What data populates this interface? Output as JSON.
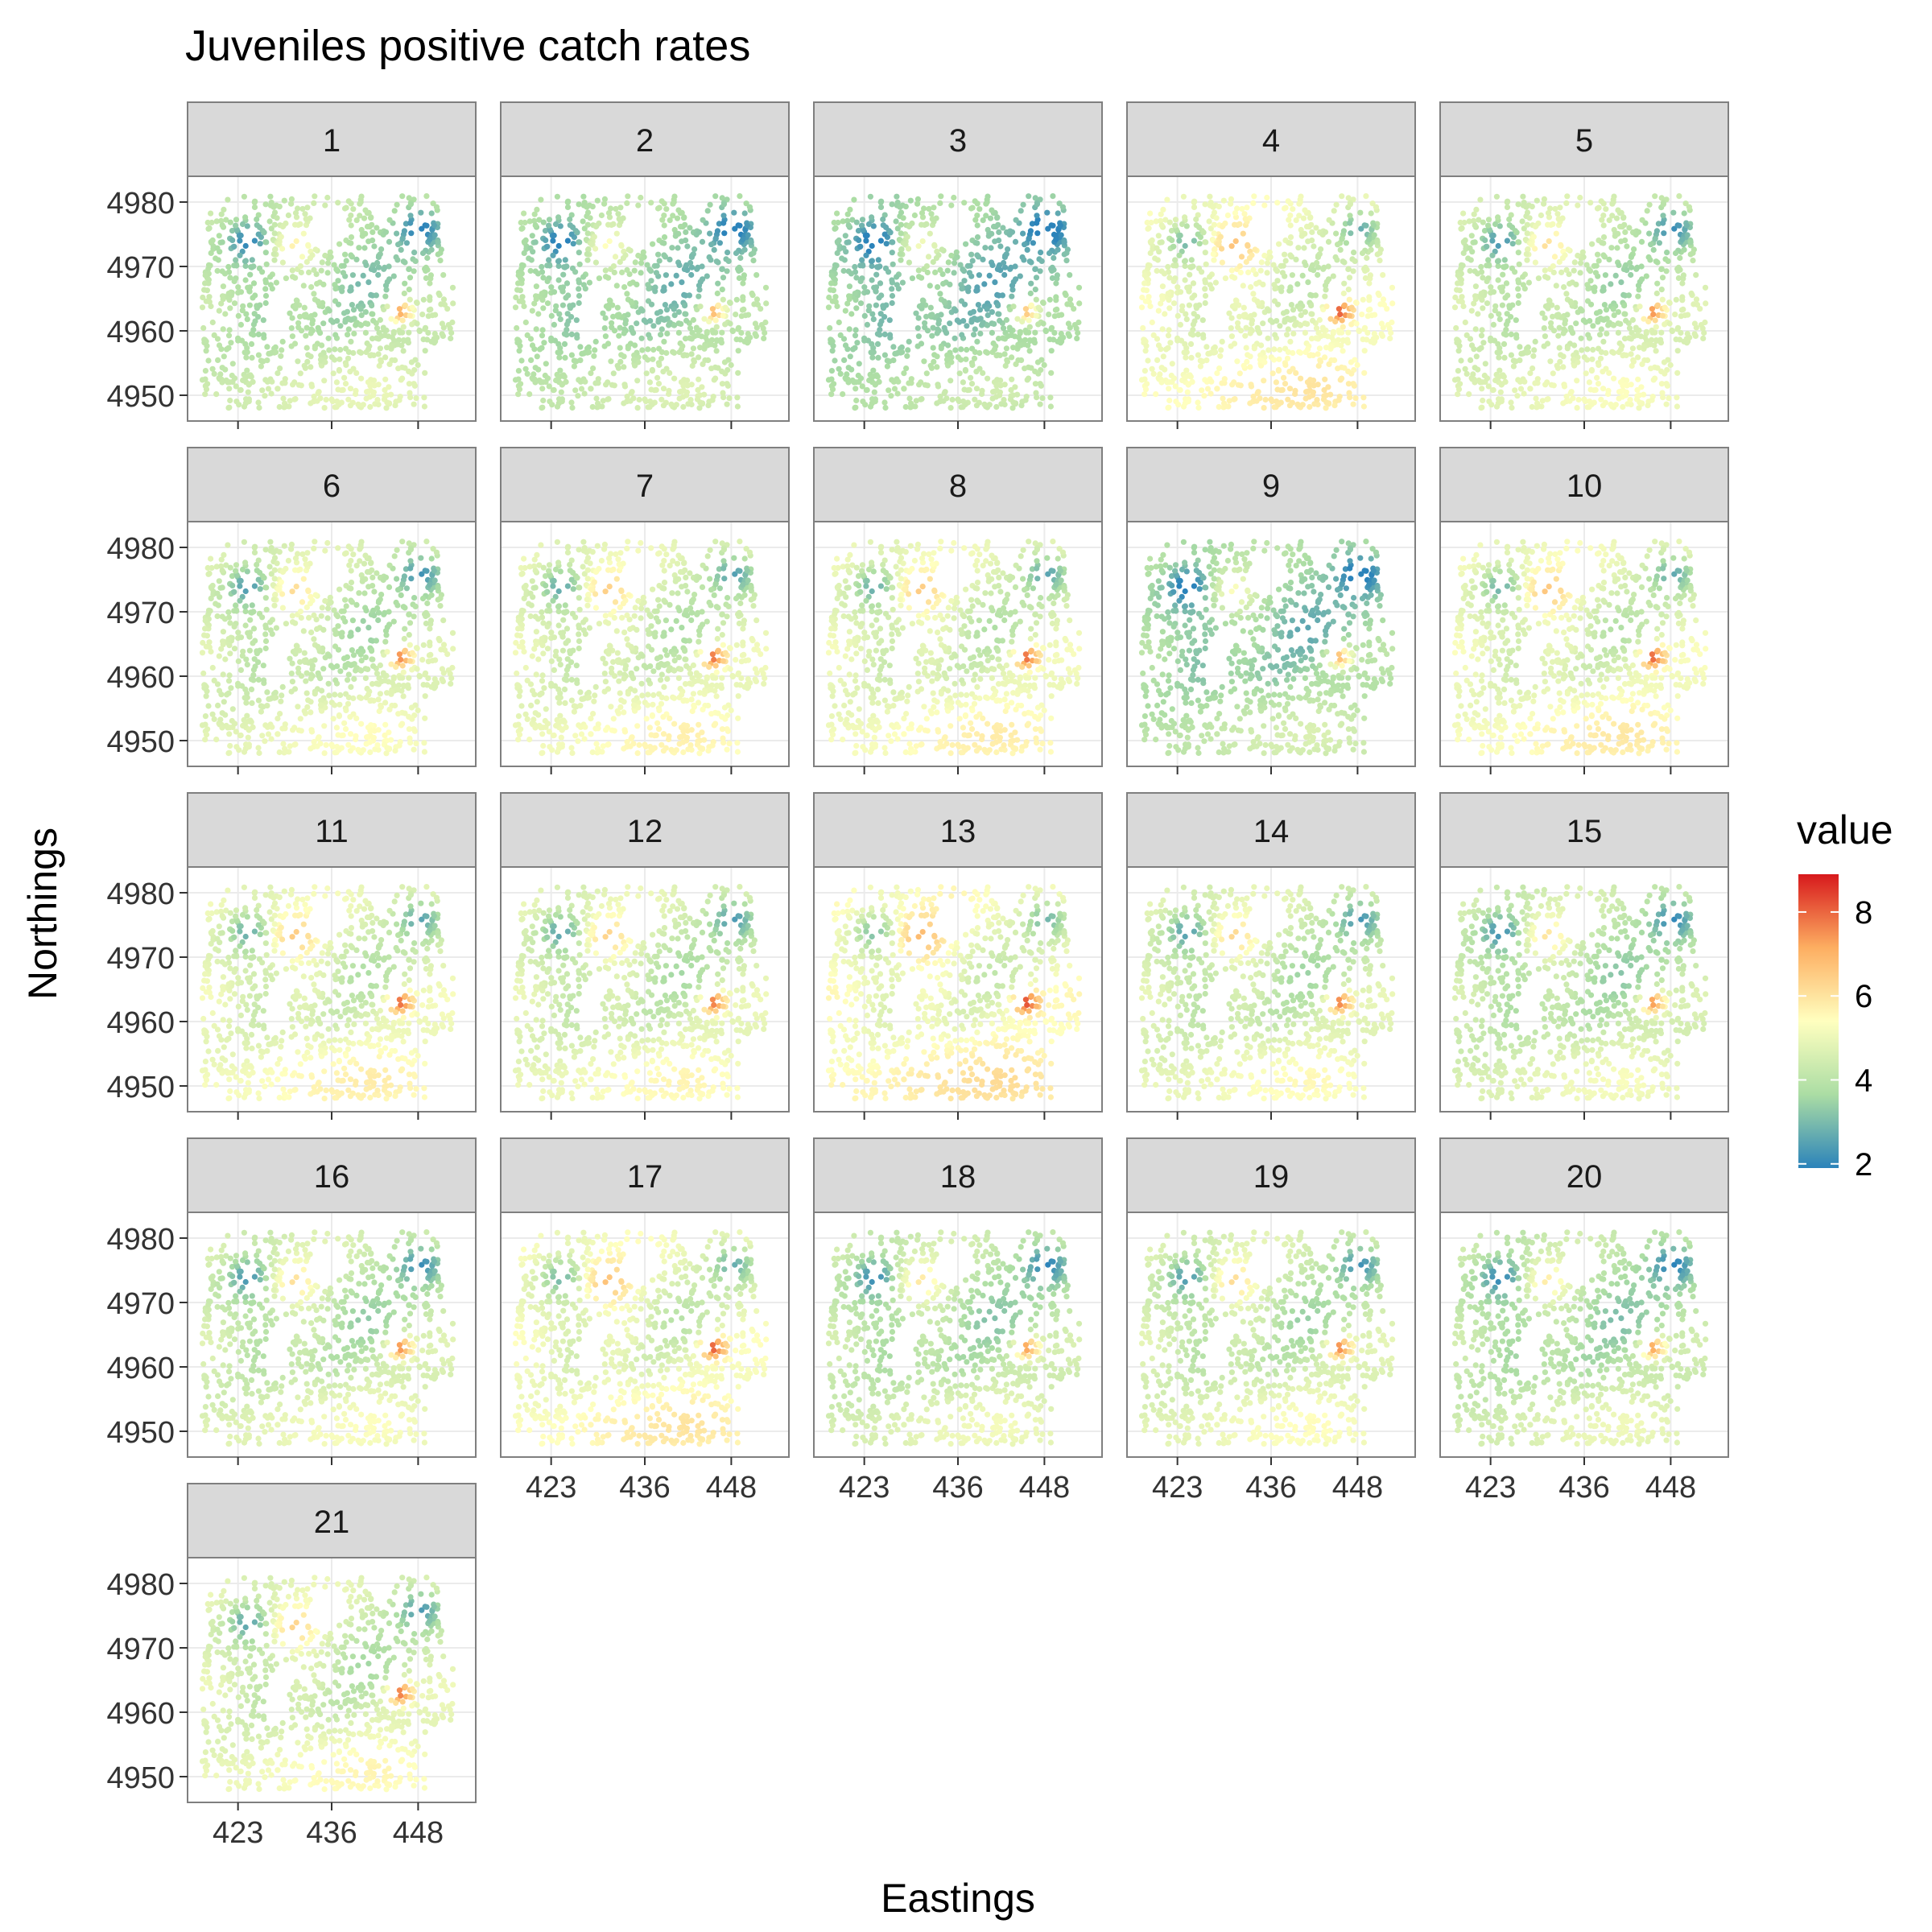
{
  "chart_data": {
    "type": "scatter",
    "title": "Juveniles positive catch rates",
    "xlabel": "Eastings",
    "ylabel": "Northings",
    "facets": [
      "1",
      "2",
      "3",
      "4",
      "5",
      "6",
      "7",
      "8",
      "9",
      "10",
      "11",
      "12",
      "13",
      "14",
      "15",
      "16",
      "17",
      "18",
      "19",
      "20",
      "21"
    ],
    "facet_layout": {
      "columns": 5,
      "rows": 5
    },
    "x_ticks": [
      423,
      436,
      448
    ],
    "y_ticks": [
      4950,
      4960,
      4970,
      4980
    ],
    "xlim": [
      416,
      456
    ],
    "ylim": [
      4946,
      4984
    ],
    "grid": true,
    "colorbar": {
      "title": "value",
      "ticks": [
        2,
        4,
        6,
        8
      ],
      "range": [
        1.9,
        8.9
      ],
      "colors": [
        "#2b83ba",
        "#abdda4",
        "#ffffbf",
        "#fdae61",
        "#d7191c"
      ]
    },
    "facet_levels": [
      0.35,
      0.2,
      0.05,
      0.9,
      0.55,
      0.6,
      0.75,
      0.8,
      0.15,
      0.85,
      0.8,
      0.7,
      1.0,
      0.65,
      0.5,
      0.55,
      0.9,
      0.45,
      0.6,
      0.4,
      0.7
    ],
    "hotspots": [
      {
        "x": 430.5,
        "y": 4973,
        "label": "north-west warm patch"
      },
      {
        "x": 445.5,
        "y": 4963,
        "label": "central-east peak"
      },
      {
        "x": 443.5,
        "y": 4953,
        "label": "south warm patch"
      },
      {
        "x": 448.5,
        "y": 4976,
        "label": "north-east low cluster"
      },
      {
        "x": 424.5,
        "y": 4974,
        "label": "north-west low cluster"
      }
    ]
  }
}
